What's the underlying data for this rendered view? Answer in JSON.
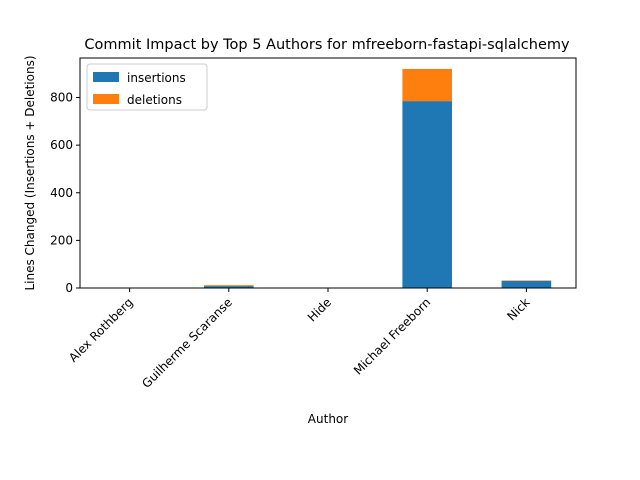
{
  "chart_data": {
    "type": "bar",
    "stacked": true,
    "title": "Commit Impact by Top 5 Authors for mfreeborn-fastapi-sqlalchemy",
    "xlabel": "Author",
    "ylabel": "Lines Changed (Insertions + Deletions)",
    "categories": [
      "Alex Rothberg",
      "Guilherme Scaranse",
      "Hide",
      "Michael Freeborn",
      "Nick"
    ],
    "series": [
      {
        "name": "insertions",
        "color": "#1f77b4",
        "values": [
          1,
          8,
          1,
          785,
          30
        ]
      },
      {
        "name": "deletions",
        "color": "#ff7f0e",
        "values": [
          1,
          4,
          1,
          135,
          2
        ]
      }
    ],
    "ylim": [
      0,
      966
    ],
    "yticks": [
      0,
      200,
      400,
      600,
      800
    ],
    "legend": "top-left",
    "grid": false
  }
}
